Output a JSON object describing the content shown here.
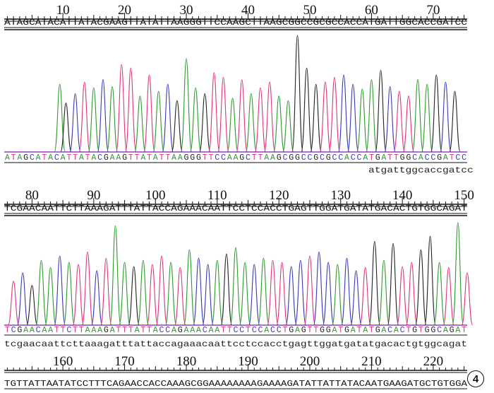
{
  "chart_data": {
    "type": "line",
    "title": "",
    "panel_label": "4",
    "base_colors": {
      "A": "#2e9b2e",
      "C": "#3a3ab8",
      "G": "#222222",
      "T": "#e0357a"
    },
    "rows": [
      {
        "ruler_labels": [
          "10",
          "20",
          "30",
          "40",
          "50",
          "60",
          "70"
        ],
        "reference": "ATAGCATACATTATACGAAGTTATATTAAGGGTTCCAAGCTTAAGCGGCCGCGCCACCATGATTGGCACCGATCC",
        "called": "ATAGCATACATTATACGAAGTTATATTAAGGGTTCCAAGCTTAAGCGGCCGCGCCACCATGATTGGCACCGATCC",
        "query": "atgattggcaccgatcc",
        "peaks": [
          {
            "base": "A",
            "x": 9.5,
            "h": 0.58
          },
          {
            "base": "G",
            "x": 10.5,
            "h": 0.42
          },
          {
            "base": "C",
            "x": 12,
            "h": 0.5
          },
          {
            "base": "T",
            "x": 13.5,
            "h": 0.6
          },
          {
            "base": "A",
            "x": 15,
            "h": 0.55
          },
          {
            "base": "C",
            "x": 16.5,
            "h": 0.62
          },
          {
            "base": "A",
            "x": 18,
            "h": 0.56
          },
          {
            "base": "T",
            "x": 19.5,
            "h": 0.75
          },
          {
            "base": "T",
            "x": 21,
            "h": 0.72
          },
          {
            "base": "A",
            "x": 22.5,
            "h": 0.48
          },
          {
            "base": "T",
            "x": 24,
            "h": 0.66
          },
          {
            "base": "A",
            "x": 25.5,
            "h": 0.52
          },
          {
            "base": "C",
            "x": 27,
            "h": 0.58
          },
          {
            "base": "G",
            "x": 28.5,
            "h": 0.44
          },
          {
            "base": "A",
            "x": 30,
            "h": 0.8
          },
          {
            "base": "A",
            "x": 31.5,
            "h": 0.55
          },
          {
            "base": "G",
            "x": 33,
            "h": 0.5
          },
          {
            "base": "T",
            "x": 34.5,
            "h": 0.68
          },
          {
            "base": "T",
            "x": 36,
            "h": 0.64
          },
          {
            "base": "A",
            "x": 37.5,
            "h": 0.46
          },
          {
            "base": "T",
            "x": 39,
            "h": 0.62
          },
          {
            "base": "A",
            "x": 40.5,
            "h": 0.5
          },
          {
            "base": "T",
            "x": 42,
            "h": 0.55
          },
          {
            "base": "T",
            "x": 43.5,
            "h": 0.6
          },
          {
            "base": "A",
            "x": 45,
            "h": 0.48
          },
          {
            "base": "A",
            "x": 46.5,
            "h": 0.44
          },
          {
            "base": "G",
            "x": 48,
            "h": 1.0
          },
          {
            "base": "G",
            "x": 49.5,
            "h": 0.72
          },
          {
            "base": "G",
            "x": 51,
            "h": 0.58
          },
          {
            "base": "T",
            "x": 52.5,
            "h": 0.6
          },
          {
            "base": "T",
            "x": 54,
            "h": 0.64
          },
          {
            "base": "C",
            "x": 55.5,
            "h": 0.66
          },
          {
            "base": "C",
            "x": 57,
            "h": 0.58
          },
          {
            "base": "A",
            "x": 58.5,
            "h": 0.54
          },
          {
            "base": "A",
            "x": 60,
            "h": 0.62
          },
          {
            "base": "G",
            "x": 61.5,
            "h": 0.7
          },
          {
            "base": "C",
            "x": 63,
            "h": 0.56
          },
          {
            "base": "T",
            "x": 64.5,
            "h": 0.52
          },
          {
            "base": "T",
            "x": 66,
            "h": 0.48
          },
          {
            "base": "A",
            "x": 67.5,
            "h": 0.62
          },
          {
            "base": "A",
            "x": 69,
            "h": 0.58
          },
          {
            "base": "G",
            "x": 70.5,
            "h": 0.66
          },
          {
            "base": "C",
            "x": 72,
            "h": 0.6
          },
          {
            "base": "G",
            "x": 73.5,
            "h": 0.52
          }
        ]
      },
      {
        "ruler_labels": [
          "80",
          "90",
          "100",
          "110",
          "120",
          "130",
          "140",
          "150"
        ],
        "reference": "TCGAACAATTCTTAAAGATTTATTACCAGAAACAATTCCTCCACCTGAGTTGGATGATATGACACTGTGGCAGAT",
        "called": "TCGAACAATTCTTAAAGATTTATTACCAGAAACAATTCCTCCACCTGAGTTGGATGATATGACACTGTGGCAGAT",
        "query": "tcgaacaattcttaaagatttattaccagaaacaattcctccacctgagttggatgatatgacactgtggcagat",
        "peaks": [
          {
            "base": "T",
            "x": 77,
            "h": 0.42
          },
          {
            "base": "C",
            "x": 78.5,
            "h": 0.5
          },
          {
            "base": "G",
            "x": 80,
            "h": 0.38
          },
          {
            "base": "A",
            "x": 81.5,
            "h": 0.62
          },
          {
            "base": "A",
            "x": 83,
            "h": 0.55
          },
          {
            "base": "C",
            "x": 84.5,
            "h": 0.66
          },
          {
            "base": "A",
            "x": 86,
            "h": 0.6
          },
          {
            "base": "T",
            "x": 87.5,
            "h": 0.58
          },
          {
            "base": "T",
            "x": 89,
            "h": 0.7
          },
          {
            "base": "C",
            "x": 90.5,
            "h": 0.52
          },
          {
            "base": "T",
            "x": 92,
            "h": 0.64
          },
          {
            "base": "A",
            "x": 93.5,
            "h": 0.95
          },
          {
            "base": "A",
            "x": 95,
            "h": 0.6
          },
          {
            "base": "G",
            "x": 96.5,
            "h": 0.56
          },
          {
            "base": "A",
            "x": 98,
            "h": 0.62
          },
          {
            "base": "T",
            "x": 99.5,
            "h": 0.58
          },
          {
            "base": "T",
            "x": 101,
            "h": 0.66
          },
          {
            "base": "A",
            "x": 102.5,
            "h": 0.6
          },
          {
            "base": "T",
            "x": 104,
            "h": 0.55
          },
          {
            "base": "A",
            "x": 105.5,
            "h": 0.72
          },
          {
            "base": "C",
            "x": 107,
            "h": 0.64
          },
          {
            "base": "C",
            "x": 108.5,
            "h": 0.58
          },
          {
            "base": "A",
            "x": 110,
            "h": 0.62
          },
          {
            "base": "G",
            "x": 111.5,
            "h": 0.68
          },
          {
            "base": "A",
            "x": 113,
            "h": 0.74
          },
          {
            "base": "A",
            "x": 114.5,
            "h": 0.6
          },
          {
            "base": "C",
            "x": 116,
            "h": 0.58
          },
          {
            "base": "A",
            "x": 117.5,
            "h": 0.64
          },
          {
            "base": "T",
            "x": 119,
            "h": 0.62
          },
          {
            "base": "T",
            "x": 120.5,
            "h": 0.6
          },
          {
            "base": "C",
            "x": 122,
            "h": 0.56
          },
          {
            "base": "C",
            "x": 123.5,
            "h": 0.62
          },
          {
            "base": "T",
            "x": 125,
            "h": 0.66
          },
          {
            "base": "C",
            "x": 126.5,
            "h": 0.7
          },
          {
            "base": "C",
            "x": 128,
            "h": 0.6
          },
          {
            "base": "A",
            "x": 129.5,
            "h": 0.58
          },
          {
            "base": "C",
            "x": 131,
            "h": 0.64
          },
          {
            "base": "C",
            "x": 132.5,
            "h": 0.52
          },
          {
            "base": "T",
            "x": 134,
            "h": 0.55
          },
          {
            "base": "G",
            "x": 135.5,
            "h": 0.8
          },
          {
            "base": "A",
            "x": 137,
            "h": 0.62
          },
          {
            "base": "G",
            "x": 138.5,
            "h": 0.78
          },
          {
            "base": "T",
            "x": 140,
            "h": 0.56
          },
          {
            "base": "T",
            "x": 141.5,
            "h": 0.6
          },
          {
            "base": "G",
            "x": 143,
            "h": 0.72
          },
          {
            "base": "G",
            "x": 144.5,
            "h": 0.85
          },
          {
            "base": "A",
            "x": 146,
            "h": 0.6
          },
          {
            "base": "T",
            "x": 147.5,
            "h": 0.55
          },
          {
            "base": "A",
            "x": 149,
            "h": 0.98
          },
          {
            "base": "T",
            "x": 150.5,
            "h": 0.5
          }
        ]
      },
      {
        "ruler_labels": [
          "160",
          "170",
          "180",
          "190",
          "200",
          "210",
          "220"
        ],
        "reference": "TGTTATTAATATCCTTTCAGAACCACCAAAGCGGAAAAAAAAGAAAAGATATTATTATACAATGAAGATGCTGTGGA"
      }
    ]
  }
}
